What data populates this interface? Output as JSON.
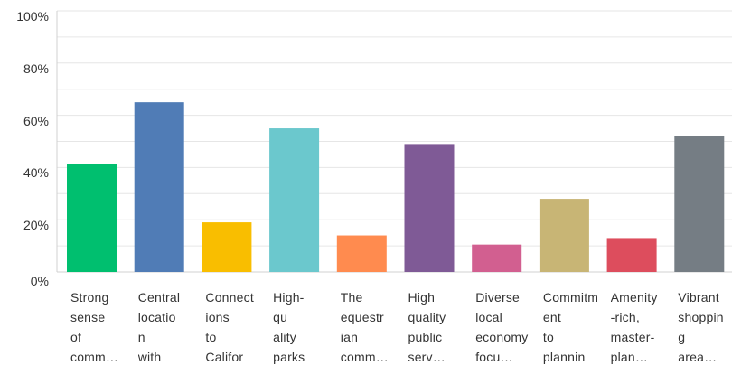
{
  "chart_data": {
    "type": "bar",
    "title": "",
    "xlabel": "",
    "ylabel": "",
    "ylim": [
      0,
      100
    ],
    "yticks": [
      "0%",
      "20%",
      "40%",
      "60%",
      "80%",
      "100%"
    ],
    "grid": true,
    "categories": [
      "Strong\nsense\nof\ncomm…",
      "Central\nlocatio\nn\nwith",
      "Connect\nions\nto\nCalifor",
      "High-\nqu\nality\nparks",
      "The\nequestr\nian\ncomm…",
      "High\nquality\npublic\nserv…",
      "Diverse\nlocal\neconomy\nfocu…",
      "Commitm\nent\nto\nplannin",
      "Amenity\n-rich,\nmaster-\nplan…",
      "Vibrant\nshoppin\ng\narea…"
    ],
    "values": [
      41.5,
      65,
      19,
      55,
      14,
      49,
      10.5,
      28,
      13,
      52
    ],
    "colors": [
      "#00bf6f",
      "#507cb6",
      "#f9be00",
      "#6bc8cd",
      "#ff8b4f",
      "#7f5a96",
      "#d25f90",
      "#c8b575",
      "#dd4d5d",
      "#757d84"
    ]
  }
}
